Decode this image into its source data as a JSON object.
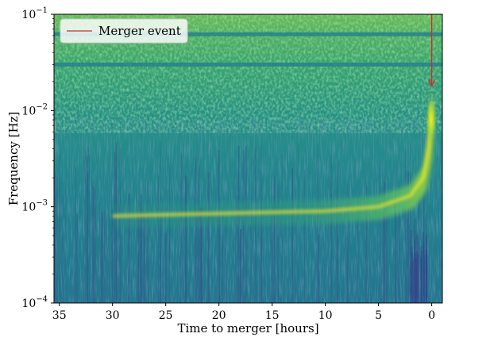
{
  "chart_data": {
    "type": "heatmap",
    "title": "",
    "xlabel": "Time to merger [hours]",
    "ylabel": "Frequency [Hz]",
    "xlim": [
      35.5,
      -1
    ],
    "ylim": [
      0.0001,
      0.1
    ],
    "x_reversed": true,
    "y_scale": "log",
    "grid": false,
    "x_ticks": [
      {
        "value": 35,
        "label": "35"
      },
      {
        "value": 30,
        "label": "30"
      },
      {
        "value": 25,
        "label": "25"
      },
      {
        "value": 20,
        "label": "20"
      },
      {
        "value": 15,
        "label": "15"
      },
      {
        "value": 10,
        "label": "10"
      },
      {
        "value": 5,
        "label": "5"
      },
      {
        "value": 0,
        "label": "0"
      }
    ],
    "y_ticks": [
      {
        "value": 0.0001,
        "base": "10",
        "exp": "−4"
      },
      {
        "value": 0.001,
        "base": "10",
        "exp": "−3"
      },
      {
        "value": 0.01,
        "base": "10",
        "exp": "−2"
      },
      {
        "value": 0.1,
        "base": "10",
        "exp": "−1"
      }
    ],
    "colormap": [
      "#440154",
      "#3b528b",
      "#21918c",
      "#5ec962",
      "#fde725"
    ],
    "background_level_hz": 0.001,
    "noise_lines_hz": [
      0.062,
      0.03
    ],
    "chirp_track": [
      {
        "t": 30,
        "f": 0.0008
      },
      {
        "t": 20,
        "f": 0.00085
      },
      {
        "t": 10,
        "f": 0.0009
      },
      {
        "t": 5,
        "f": 0.001
      },
      {
        "t": 2,
        "f": 0.0013
      },
      {
        "t": 0.8,
        "f": 0.002
      },
      {
        "t": 0.3,
        "f": 0.004
      },
      {
        "t": 0.1,
        "f": 0.008
      },
      {
        "t": 0.03,
        "f": 0.012
      }
    ],
    "merger_event": {
      "t": 0,
      "f_top": 0.1,
      "f_tip": 0.018,
      "color": "#d62728"
    },
    "legend": {
      "placement": "top-left",
      "entries": [
        {
          "label": "Merger event",
          "color": "#d62728"
        }
      ]
    }
  }
}
